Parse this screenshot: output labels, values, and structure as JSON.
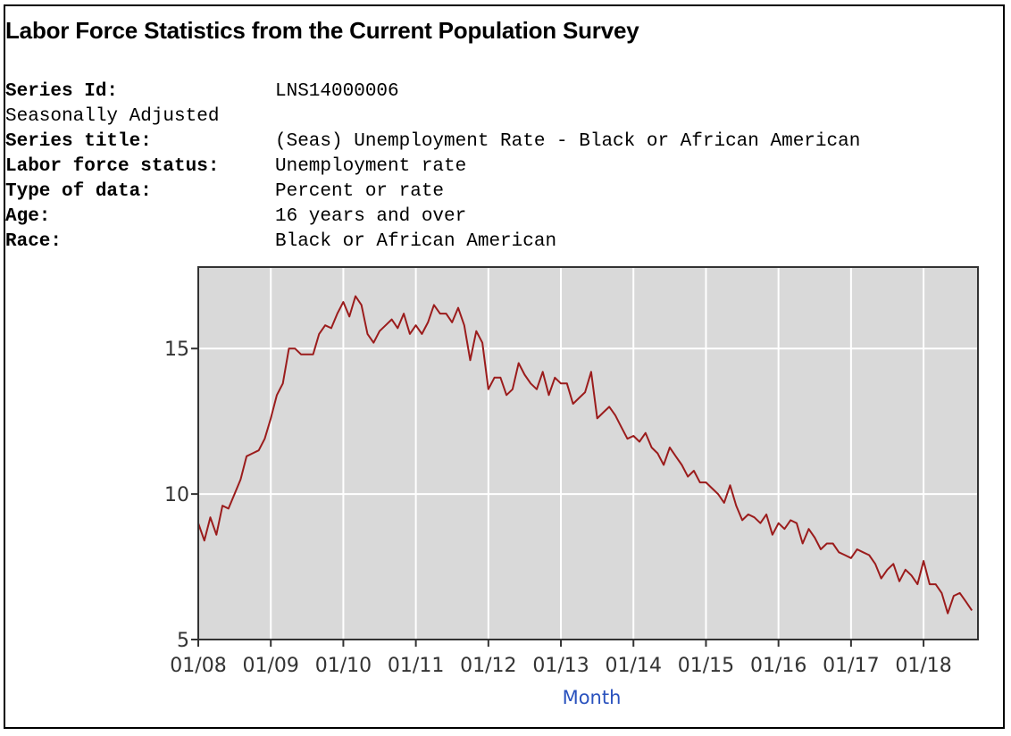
{
  "header": {
    "title": "Labor Force Statistics from the Current Population Survey"
  },
  "meta": {
    "rows": [
      {
        "label": "Series Id:",
        "value": "LNS14000006"
      },
      {
        "label": "Seasonally Adjusted",
        "value": ""
      },
      {
        "label": "Series title:",
        "value": "(Seas) Unemployment Rate - Black or African American"
      },
      {
        "label": "Labor force status:",
        "value": "Unemployment rate"
      },
      {
        "label": "Type of data:",
        "value": "Percent or rate"
      },
      {
        "label": "Age:",
        "value": "16 years and over"
      },
      {
        "label": "Race:",
        "value": "Black or African American"
      }
    ]
  },
  "colors": {
    "plot_background": "#d9d9d9",
    "grid": "#ffffff",
    "line": "#9b1c1c",
    "axis_title": "#2a52be"
  },
  "chart_data": {
    "type": "line",
    "xlabel": "Month",
    "ylabel": "",
    "x_tick_labels": [
      "01/08",
      "01/09",
      "01/10",
      "01/11",
      "01/12",
      "01/13",
      "01/14",
      "01/15",
      "01/16",
      "01/17",
      "01/18"
    ],
    "y_tick_labels": [
      "5",
      "10",
      "15"
    ],
    "ylim": [
      5,
      17.8
    ],
    "grid": true,
    "x_start": "2008-01",
    "x_end": "2018-08",
    "series": [
      {
        "values": [
          9.0,
          8.4,
          9.2,
          8.6,
          9.6,
          9.5,
          10.0,
          10.5,
          11.3,
          11.4,
          11.5,
          11.9,
          12.6,
          13.4,
          13.8,
          15.0,
          15.0,
          14.8,
          14.8,
          14.8,
          15.5,
          15.8,
          15.7,
          16.2,
          16.6,
          16.1,
          16.8,
          16.5,
          15.5,
          15.2,
          15.6,
          15.8,
          16.0,
          15.7,
          16.2,
          15.5,
          15.8,
          15.5,
          15.9,
          16.5,
          16.2,
          16.2,
          15.9,
          16.4,
          15.8,
          14.6,
          15.6,
          15.2,
          13.6,
          14.0,
          14.0,
          13.4,
          13.6,
          14.5,
          14.1,
          13.8,
          13.6,
          14.2,
          13.4,
          14.0,
          13.8,
          13.8,
          13.1,
          13.3,
          13.5,
          14.2,
          12.6,
          12.8,
          13.0,
          12.7,
          12.3,
          11.9,
          12.0,
          11.8,
          12.1,
          11.6,
          11.4,
          11.0,
          11.6,
          11.3,
          11.0,
          10.6,
          10.8,
          10.4,
          10.4,
          10.2,
          10.0,
          9.7,
          10.3,
          9.6,
          9.1,
          9.3,
          9.2,
          9.0,
          9.3,
          8.6,
          9.0,
          8.8,
          9.1,
          9.0,
          8.3,
          8.8,
          8.5,
          8.1,
          8.3,
          8.3,
          8.0,
          7.9,
          7.8,
          8.1,
          8.0,
          7.9,
          7.6,
          7.1,
          7.4,
          7.6,
          7.0,
          7.4,
          7.2,
          6.9,
          7.7,
          6.9,
          6.9,
          6.6,
          5.9,
          6.5,
          6.6,
          6.3,
          6.0
        ]
      }
    ]
  }
}
